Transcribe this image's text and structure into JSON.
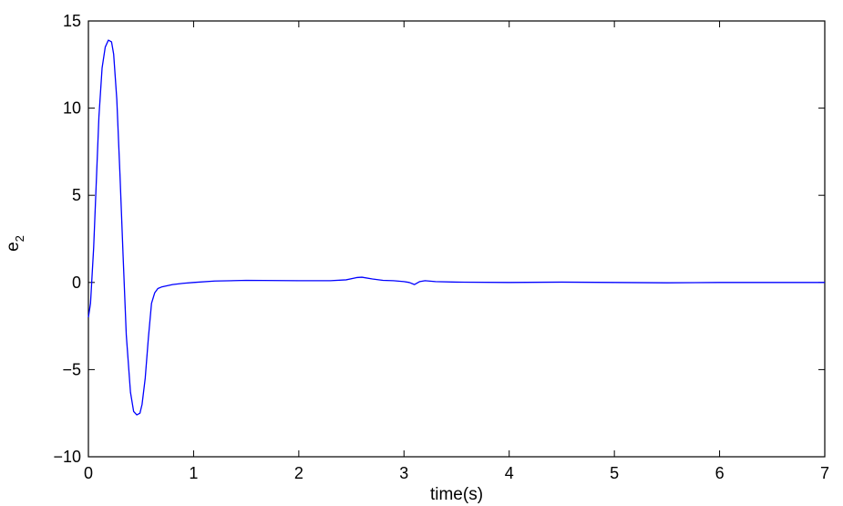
{
  "chart_data": {
    "type": "line",
    "title": "",
    "xlabel": "time(s)",
    "ylabel": "e",
    "ylabel_subscript": "2",
    "xlim": [
      0,
      7
    ],
    "ylim": [
      -10,
      15
    ],
    "xticks": [
      0,
      1,
      2,
      3,
      4,
      5,
      6,
      7
    ],
    "yticks": [
      -10,
      -5,
      0,
      5,
      10,
      15
    ],
    "ytick_labels": [
      "−10",
      "−5",
      "0",
      "5",
      "10",
      "15"
    ],
    "grid": false,
    "legend": "none",
    "series": [
      {
        "color": "#0000ff",
        "x": [
          0,
          0.02,
          0.05,
          0.08,
          0.1,
          0.13,
          0.16,
          0.19,
          0.22,
          0.24,
          0.27,
          0.3,
          0.33,
          0.36,
          0.4,
          0.43,
          0.46,
          0.49,
          0.51,
          0.54,
          0.57,
          0.6,
          0.63,
          0.66,
          0.7,
          0.8,
          0.9,
          1.0,
          1.2,
          1.5,
          2.0,
          2.3,
          2.45,
          2.55,
          2.6,
          2.7,
          2.8,
          2.9,
          3.0,
          3.05,
          3.1,
          3.15,
          3.2,
          3.3,
          3.5,
          4.0,
          4.5,
          5.0,
          5.5,
          6.0,
          6.5,
          7.0
        ],
        "y": [
          -2.0,
          -1.2,
          2.0,
          6.5,
          9.5,
          12.3,
          13.5,
          13.9,
          13.8,
          13.1,
          10.5,
          6.2,
          1.5,
          -3.0,
          -6.3,
          -7.4,
          -7.6,
          -7.5,
          -7.0,
          -5.5,
          -3.2,
          -1.2,
          -0.6,
          -0.35,
          -0.25,
          -0.12,
          -0.05,
          0.0,
          0.08,
          0.12,
          0.1,
          0.1,
          0.15,
          0.28,
          0.3,
          0.2,
          0.12,
          0.1,
          0.05,
          0.0,
          -0.12,
          0.05,
          0.1,
          0.05,
          0.02,
          0.0,
          0.02,
          0.0,
          -0.02,
          0.0,
          0.0,
          0.0
        ]
      }
    ]
  }
}
